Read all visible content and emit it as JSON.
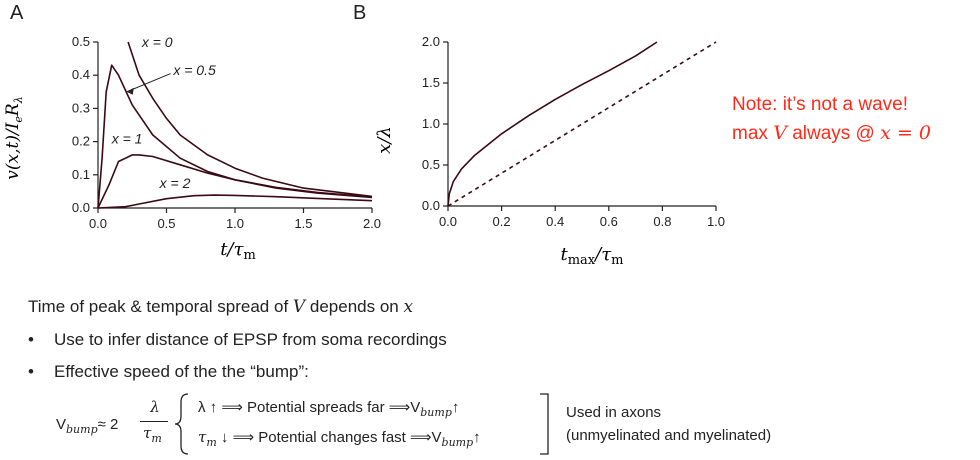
{
  "panels": {
    "A": {
      "label": "A",
      "xlabel": "t/τm",
      "ylabel": "v(x,t)/IeRλ"
    },
    "B": {
      "label": "B",
      "xlabel": "tmax/τm",
      "ylabel": "x/λ"
    }
  },
  "chart_data": [
    {
      "type": "line",
      "panel": "A",
      "xlabel": "t/τ_m",
      "ylabel": "v(x,t)/I_e R_λ",
      "xlim": [
        0,
        2.0
      ],
      "ylim": [
        0,
        0.5
      ],
      "xticks": [
        "0.0",
        "0.5",
        "1.0",
        "1.5",
        "2.0"
      ],
      "yticks": [
        "0.0",
        "0.1",
        "0.2",
        "0.3",
        "0.4",
        "0.5"
      ],
      "series": [
        {
          "name": "x = 0",
          "x": [
            0.22,
            0.3,
            0.4,
            0.5,
            0.6,
            0.8,
            1.0,
            1.2,
            1.5,
            1.8,
            2.0
          ],
          "y": [
            0.5,
            0.4,
            0.33,
            0.27,
            0.22,
            0.16,
            0.12,
            0.09,
            0.06,
            0.045,
            0.035
          ]
        },
        {
          "name": "x = 0.5",
          "x": [
            0,
            0.03,
            0.06,
            0.1,
            0.15,
            0.25,
            0.4,
            0.6,
            0.8,
            1.0,
            1.3,
            1.6,
            2.0
          ],
          "y": [
            0,
            0.15,
            0.35,
            0.43,
            0.4,
            0.31,
            0.22,
            0.15,
            0.11,
            0.085,
            0.06,
            0.045,
            0.032
          ]
        },
        {
          "name": "x = 1",
          "x": [
            0,
            0.08,
            0.15,
            0.25,
            0.3,
            0.4,
            0.6,
            0.8,
            1.0,
            1.3,
            1.6,
            2.0
          ],
          "y": [
            0,
            0.07,
            0.14,
            0.16,
            0.16,
            0.155,
            0.13,
            0.105,
            0.085,
            0.062,
            0.047,
            0.033
          ]
        },
        {
          "name": "x = 2",
          "x": [
            0,
            0.2,
            0.3,
            0.5,
            0.7,
            0.85,
            1.0,
            1.3,
            1.6,
            2.0
          ],
          "y": [
            0,
            0.004,
            0.012,
            0.028,
            0.037,
            0.039,
            0.038,
            0.034,
            0.029,
            0.022
          ]
        }
      ],
      "labels": [
        "x = 0",
        "x = 0.5",
        "x = 1",
        "x = 2"
      ]
    },
    {
      "type": "line",
      "panel": "B",
      "xlabel": "t_max/τ_m",
      "ylabel": "x/λ",
      "xlim": [
        0,
        1.0
      ],
      "ylim": [
        0,
        2.0
      ],
      "xticks": [
        "0.0",
        "0.2",
        "0.4",
        "0.6",
        "0.8",
        "1.0"
      ],
      "yticks": [
        "0.0",
        "0.5",
        "1.0",
        "1.5",
        "2.0"
      ],
      "series": [
        {
          "style": "solid",
          "x": [
            0,
            0.005,
            0.02,
            0.05,
            0.1,
            0.2,
            0.3,
            0.4,
            0.5,
            0.6,
            0.7,
            0.78
          ],
          "y": [
            0,
            0.15,
            0.3,
            0.45,
            0.62,
            0.88,
            1.1,
            1.3,
            1.48,
            1.65,
            1.83,
            2.0
          ]
        },
        {
          "style": "dashed",
          "x": [
            0,
            1.0
          ],
          "y": [
            0,
            2.0
          ]
        }
      ]
    }
  ],
  "note": {
    "line1": "Note: it’s not a wave!",
    "line2_pre": "max ",
    "line2_var": "V",
    "line2_mid": " always @ ",
    "line2_eq": "x = 0"
  },
  "text": {
    "main_pre": "Time of peak & temporal spread of ",
    "main_var": "V",
    "main_mid": " depends on ",
    "main_var2": "x",
    "bullet1": "Use to infer distance of EPSP from soma recordings",
    "bullet2": "Effective speed of the the “bump”:"
  },
  "formula": {
    "lhs": "V",
    "lhs_sub": "bump",
    "approx": "≈ 2",
    "num": "λ",
    "den": "τ",
    "den_sub": "m",
    "row1": "λ ↑ ⟹ Potential spreads far ⟹V",
    "row1_sub": "bump",
    "row1_arrow": "↑",
    "row2_pre": "τ",
    "row2_sub_m": "m",
    "row2": " ↓ ⟹ Potential changes fast  ⟹V",
    "row2_sub": "bump",
    "row2_arrow": "↑",
    "side1": "Used in axons",
    "side2": "(unmyelinated and myelinated)"
  },
  "colors": {
    "curve": "#3a0a14",
    "note": "#ff2a1a",
    "axis": "#222222"
  }
}
